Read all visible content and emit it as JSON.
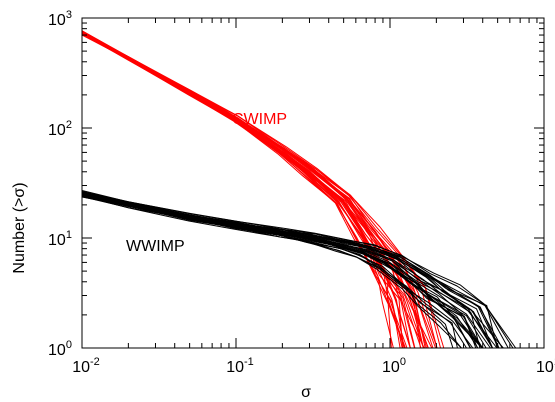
{
  "chart_data": {
    "type": "line",
    "title": "",
    "xlabel": "σ",
    "ylabel": "Number (>σ)",
    "xscale": "log",
    "yscale": "log",
    "xlim": [
      0.01,
      10
    ],
    "ylim": [
      1,
      1000
    ],
    "x_ticks": [
      {
        "value": 0.01,
        "base": "10",
        "exp": "-2"
      },
      {
        "value": 0.1,
        "base": "10",
        "exp": "-1"
      },
      {
        "value": 1,
        "base": "10",
        "exp": "0"
      },
      {
        "value": 10,
        "base": "10",
        "exp": "1"
      }
    ],
    "y_ticks": [
      {
        "value": 1,
        "base": "10",
        "exp": "0"
      },
      {
        "value": 10,
        "base": "10",
        "exp": "1"
      },
      {
        "value": 100,
        "base": "10",
        "exp": "2"
      },
      {
        "value": 1000,
        "base": "10",
        "exp": "3"
      }
    ],
    "grid": false,
    "series": [
      {
        "name": "CWIMP",
        "color": "#ff0000",
        "x": [
          0.01,
          0.02,
          0.05,
          0.1,
          0.2,
          0.3,
          0.5,
          0.7,
          1.0,
          1.2,
          1.5
        ],
        "y": [
          730,
          430,
          210,
          120,
          62,
          40,
          22,
          11,
          5,
          3,
          1
        ]
      },
      {
        "name": "WWIMP",
        "color": "#000000",
        "x": [
          0.01,
          0.02,
          0.05,
          0.1,
          0.2,
          0.3,
          0.5,
          0.7,
          1.0,
          1.5,
          2.0,
          3.0,
          4.0
        ],
        "y": [
          25,
          20,
          15.5,
          13,
          11,
          10,
          8.5,
          7.5,
          6,
          4,
          3,
          2,
          1
        ]
      }
    ],
    "annotations": [
      {
        "text": "CWIMP",
        "color": "#ff0000"
      },
      {
        "text": "WWIMP",
        "color": "#000000"
      }
    ]
  }
}
